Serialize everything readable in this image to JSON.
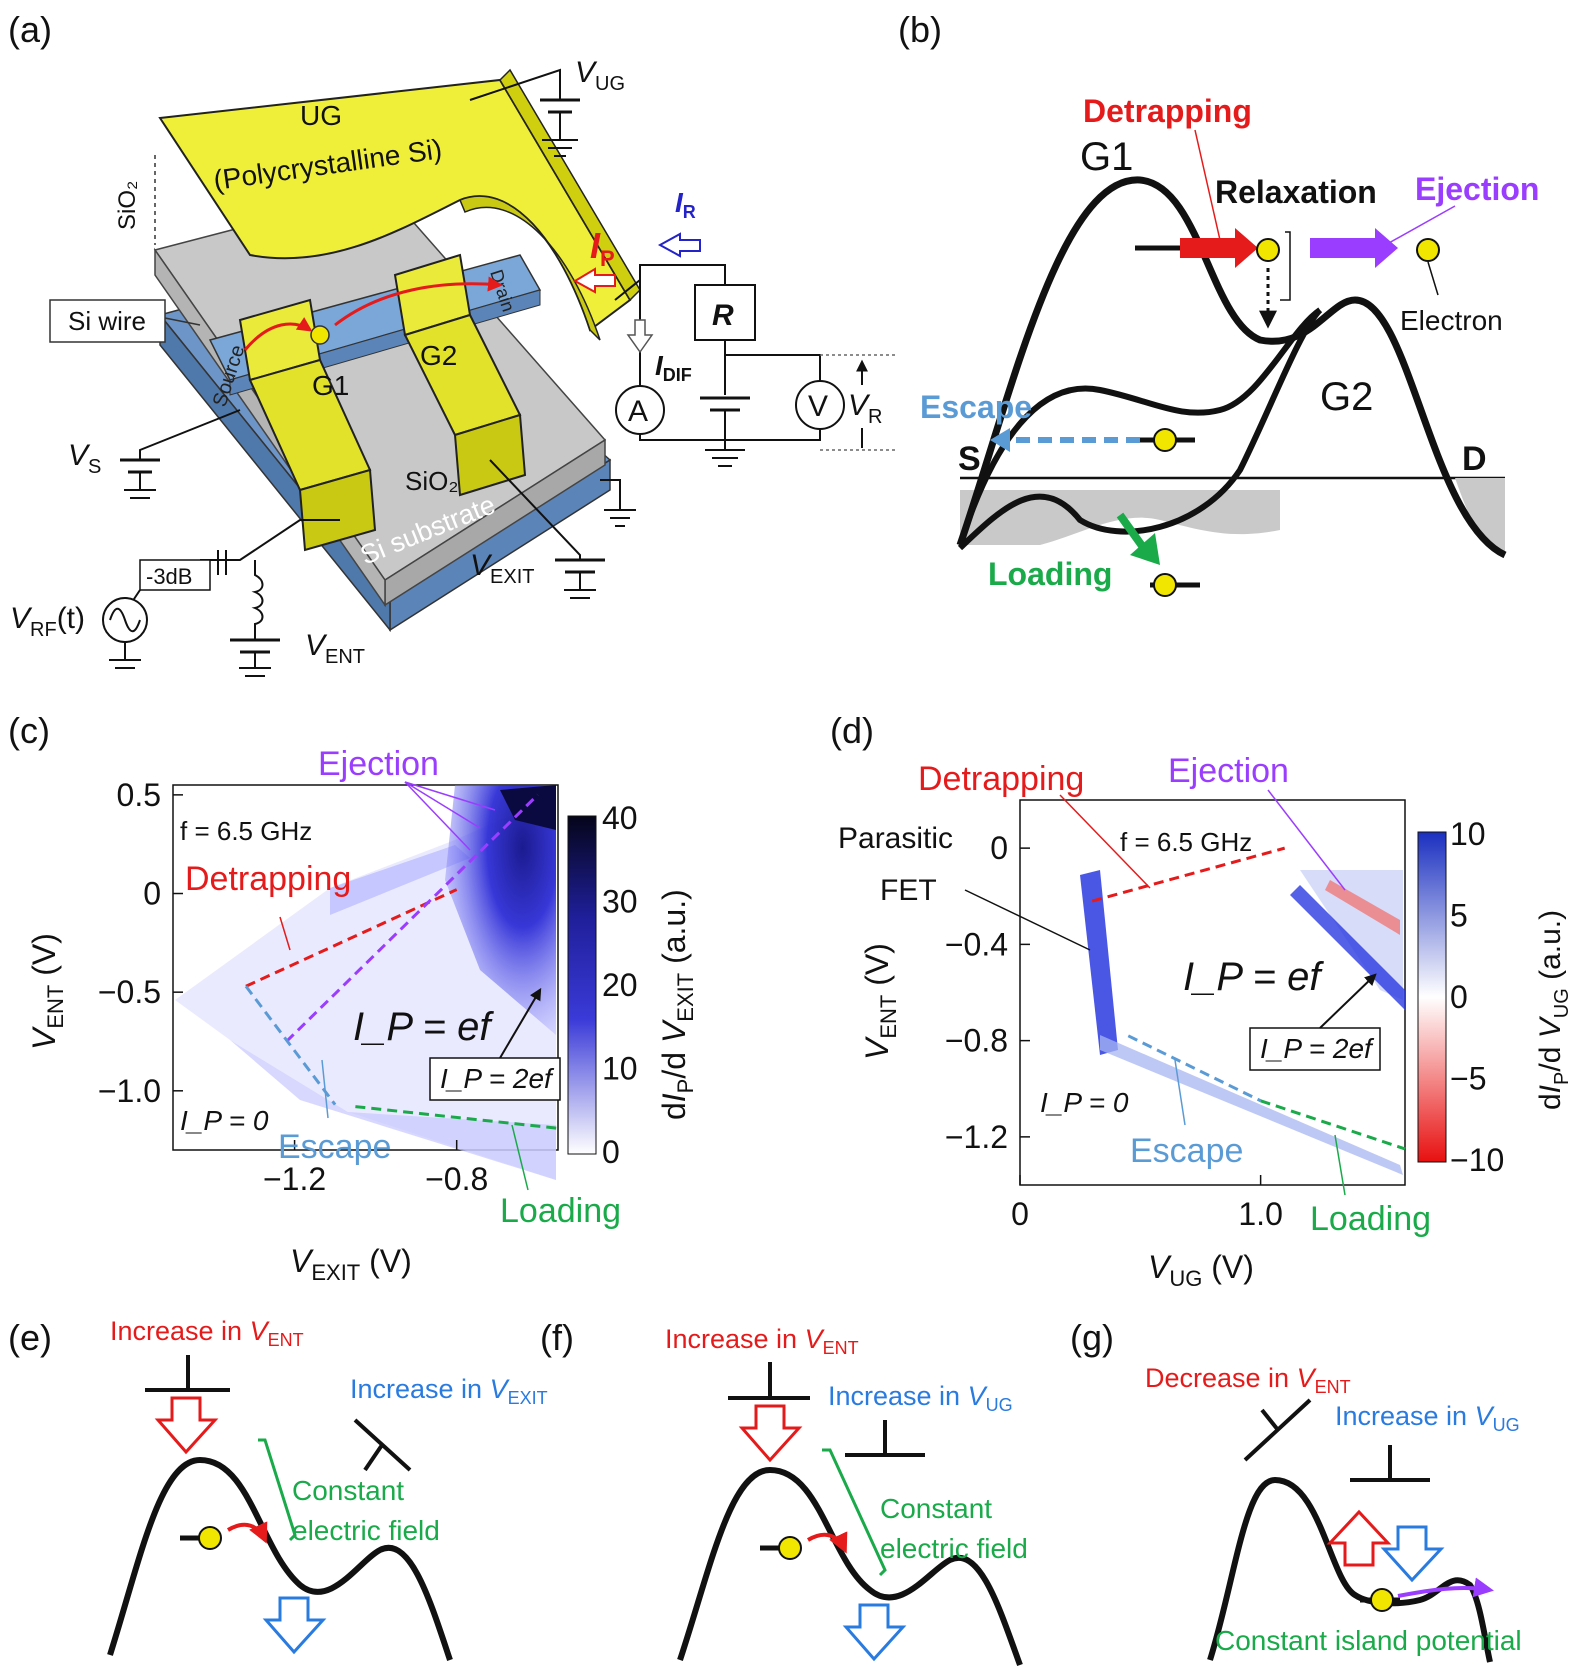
{
  "panels": {
    "a": "(a)",
    "b": "(b)",
    "c": "(c)",
    "d": "(d)",
    "e": "(e)",
    "f": "(f)",
    "g": "(g)"
  },
  "panel_a": {
    "ug_label": "UG",
    "ug_material": "(Polycrystalline Si)",
    "sio2_top": "SiO₂",
    "si_wire": "Si wire",
    "source": "Source",
    "drain": "Drain",
    "g1": "G1",
    "g2": "G2",
    "sio2": "SiO₂",
    "substrate": "Si substrate",
    "v_ug": "V",
    "v_ug_sub": "UG",
    "v_s": "V",
    "v_s_sub": "S",
    "v_exit": "V",
    "v_exit_sub": "EXIT",
    "v_ent": "V",
    "v_ent_sub": "ENT",
    "v_rf": "V",
    "v_rf_sub": "RF",
    "v_rf_suffix": "(t)",
    "attenuator": "-3dB",
    "i_p": "I",
    "i_p_sub": "P",
    "i_r": "I",
    "i_r_sub": "R",
    "i_dif": "I",
    "i_dif_sub": "DIF",
    "resistor": "R",
    "ammeter": "A",
    "voltmeter": "V",
    "v_r": "V",
    "v_r_sub": "R"
  },
  "panel_b": {
    "detrapping": "Detrapping",
    "relaxation": "Relaxation",
    "ejection": "Ejection",
    "escape": "Escape",
    "loading": "Loading",
    "electron": "Electron",
    "g1": "G1",
    "g2": "G2",
    "s": "S",
    "d": "D"
  },
  "colors": {
    "red": "#ee1c25",
    "purple": "#9b3dff",
    "blue": "#5b9bd5",
    "green": "#1aaa4a",
    "yellow": "#f0e600",
    "deepblue": "#1f1fd0",
    "label_blue": "#3b6fd4"
  },
  "chart_data": [
    {
      "type": "heatmap",
      "panel": "(c)",
      "title": "",
      "xlabel": "V_EXIT (V)",
      "ylabel": "V_ENT (V)",
      "xlim": [
        -1.5,
        -0.55
      ],
      "ylim": [
        -1.3,
        0.55
      ],
      "xticks": [
        "-1.2",
        "-0.8"
      ],
      "yticks": [
        "0.5",
        "0",
        "-0.5",
        "-1.0"
      ],
      "colorbar_label": "dI_P/d V_EXIT (a.u.)",
      "colorbar_ticks": [
        "40",
        "30",
        "20",
        "10",
        "0"
      ],
      "colorbar_range": [
        0,
        40
      ],
      "annotations": {
        "freq": "f = 6.5 GHz",
        "detrapping": "Detrapping",
        "ejection": "Ejection",
        "escape": "Escape",
        "loading": "Loading",
        "ip_ef": "I_P = ef",
        "ip_2ef": "I_P = 2ef",
        "ip_0": "I_P = 0"
      },
      "lines": {
        "detrapping": [
          [
            -1.32,
            -0.47
          ],
          [
            -0.8,
            0.02
          ]
        ],
        "ejection_lower": [
          [
            -1.22,
            -0.75
          ],
          [
            -0.6,
            0.5
          ]
        ],
        "escape": [
          [
            -1.32,
            -0.47
          ],
          [
            -1.1,
            -1.07
          ]
        ],
        "loading": [
          [
            -1.05,
            -1.08
          ],
          [
            -0.55,
            -1.19
          ]
        ]
      }
    },
    {
      "type": "heatmap",
      "panel": "(d)",
      "title": "",
      "xlabel": "V_UG (V)",
      "ylabel": "V_ENT (V)",
      "xlim": [
        0,
        1.6
      ],
      "ylim": [
        -1.4,
        0.2
      ],
      "xticks": [
        "0",
        "1.0"
      ],
      "yticks": [
        "0",
        "-0.4",
        "-0.8",
        "-1.2"
      ],
      "colorbar_label": "dI_P/d V_UG (a.u.)",
      "colorbar_ticks": [
        "10",
        "5",
        "0",
        "-5",
        "-10"
      ],
      "colorbar_range": [
        -10,
        10
      ],
      "annotations": {
        "freq": "f = 6.5 GHz",
        "detrapping": "Detrapping",
        "ejection": "Ejection",
        "parasitic": "Parasitic",
        "fet": "FET",
        "escape": "Escape",
        "loading": "Loading",
        "ip_ef": "I_P = ef",
        "ip_2ef": "I_P = 2ef",
        "ip_0": "I_P = 0"
      },
      "lines": {
        "detrapping": [
          [
            0.3,
            -0.22
          ],
          [
            1.1,
            0.0
          ]
        ],
        "escape": [
          [
            0.45,
            -0.78
          ],
          [
            1.0,
            -1.05
          ]
        ],
        "loading": [
          [
            1.0,
            -1.05
          ],
          [
            1.6,
            -1.25
          ]
        ]
      }
    }
  ],
  "panel_e": {
    "inc_ent": "Increase in ",
    "inc_ent_v": "V",
    "inc_ent_sub": "ENT",
    "inc_exit": "Increase in ",
    "inc_exit_v": "V",
    "inc_exit_sub": "EXIT",
    "const1": "Constant",
    "const2": "electric field"
  },
  "panel_f": {
    "inc_ent": "Increase in ",
    "inc_ent_v": "V",
    "inc_ent_sub": "ENT",
    "inc_ug": "Increase in ",
    "inc_ug_v": "V",
    "inc_ug_sub": "UG",
    "const1": "Constant",
    "const2": "electric field"
  },
  "panel_g": {
    "dec_ent": "Decrease in ",
    "dec_ent_v": "V",
    "dec_ent_sub": "ENT",
    "inc_ug": "Increase in ",
    "inc_ug_v": "V",
    "inc_ug_sub": "UG",
    "const": "Constant island potential"
  }
}
